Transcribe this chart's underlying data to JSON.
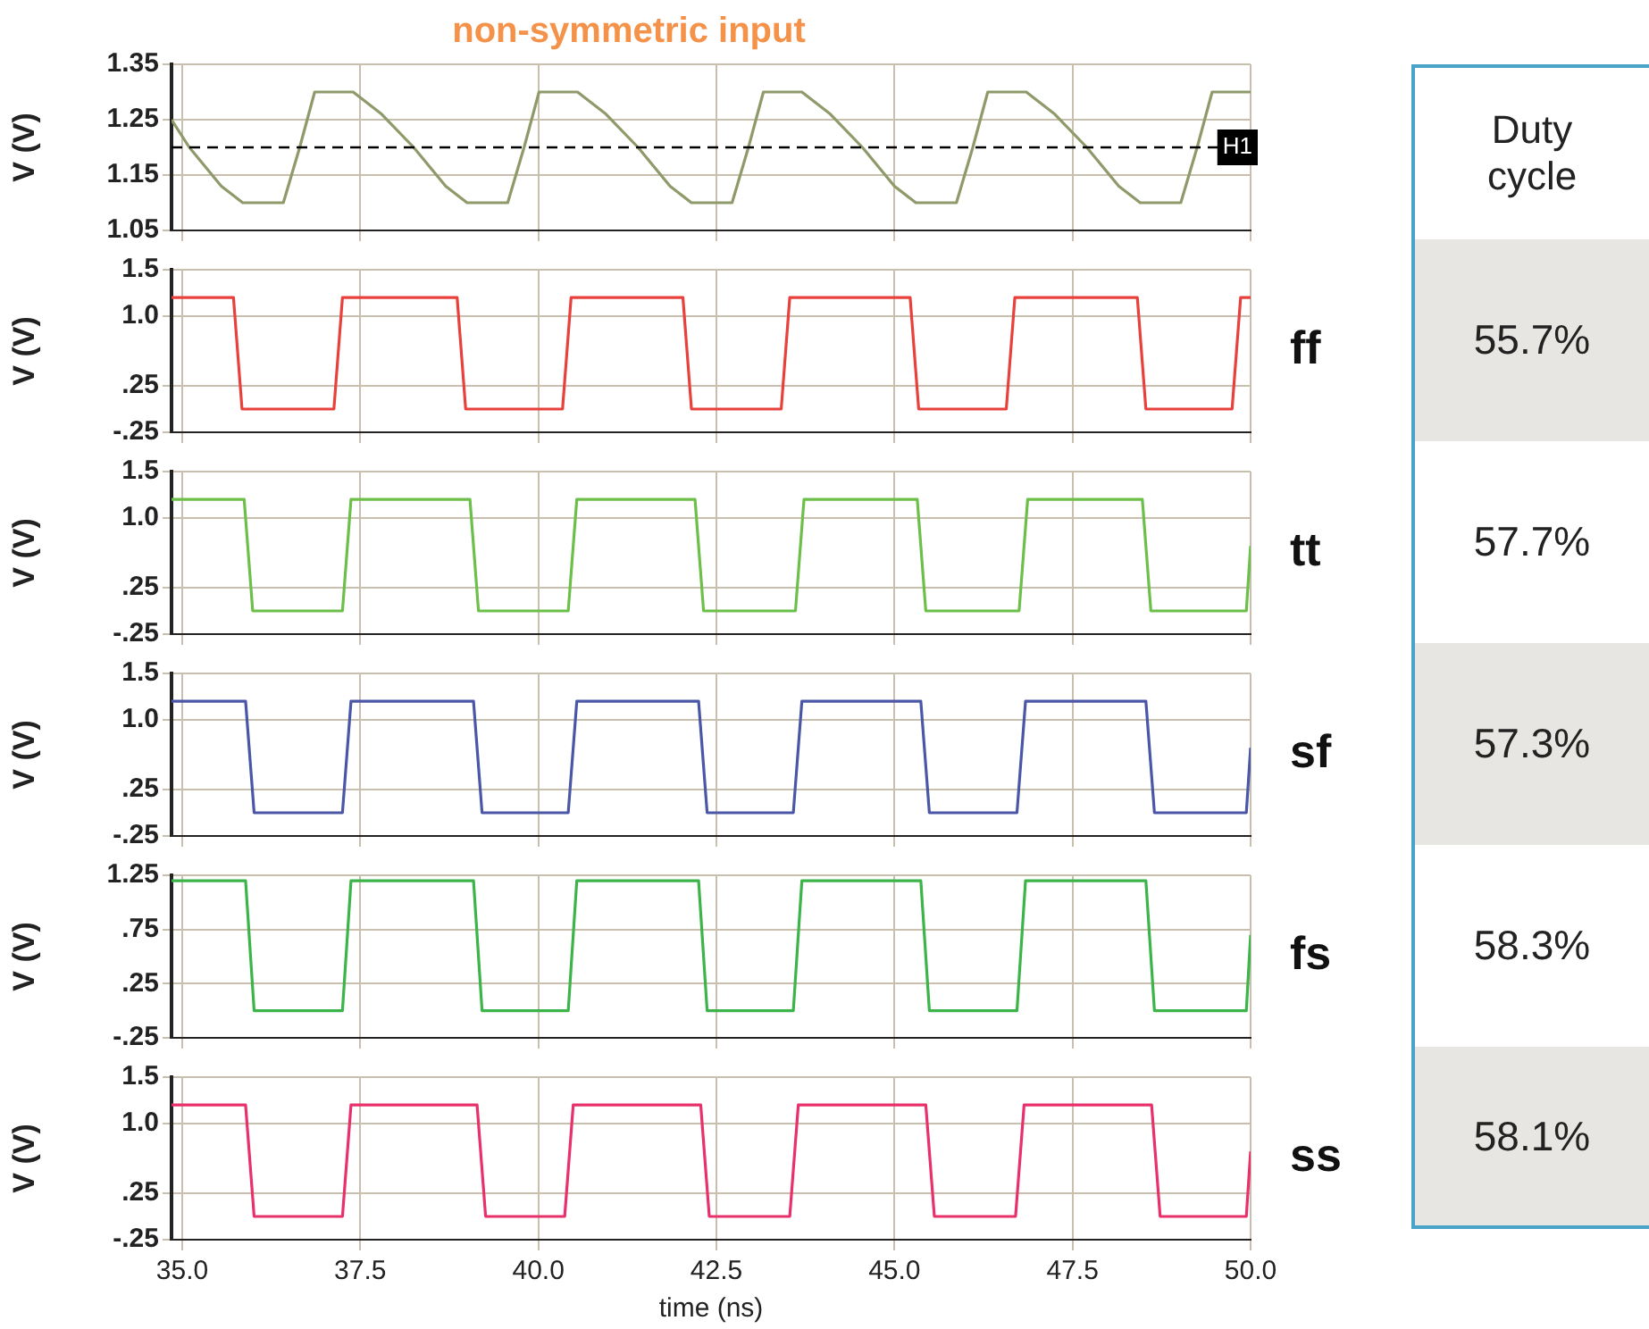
{
  "chart_data": [
    {
      "type": "line",
      "title": "non-symmetric input",
      "ylabel": "V (V)",
      "xlim": [
        34.85,
        50
      ],
      "ylim": [
        1.05,
        1.35
      ],
      "yticks": [
        1.05,
        1.15,
        1.25,
        1.35
      ],
      "grid": true,
      "tick_labels": "y",
      "marker": "none",
      "line_style": "solid",
      "ref_lines": [
        {
          "axis": "y",
          "value": 1.2,
          "label": "H1",
          "color": "#000000",
          "line_style": "dashed"
        }
      ],
      "series": [
        {
          "color": "#8f9a6a",
          "x": [
            34.85,
            35.1,
            35.55,
            35.85,
            36.42,
            36.65,
            36.86,
            37.4,
            37.8,
            38.25,
            38.7,
            39.0,
            39.57,
            39.8,
            40.01,
            40.55,
            40.95,
            41.4,
            41.85,
            42.15,
            42.72,
            42.95,
            43.16,
            43.7,
            44.1,
            44.55,
            45.0,
            45.3,
            45.87,
            46.1,
            46.31,
            46.85,
            47.25,
            47.7,
            48.15,
            48.45,
            49.02,
            49.25,
            49.46,
            50
          ],
          "values": [
            1.25,
            1.2,
            1.13,
            1.1,
            1.1,
            1.2,
            1.3,
            1.3,
            1.26,
            1.2,
            1.13,
            1.1,
            1.1,
            1.2,
            1.3,
            1.3,
            1.26,
            1.2,
            1.13,
            1.1,
            1.1,
            1.2,
            1.3,
            1.3,
            1.26,
            1.2,
            1.13,
            1.1,
            1.1,
            1.2,
            1.3,
            1.3,
            1.26,
            1.2,
            1.13,
            1.1,
            1.1,
            1.2,
            1.3,
            1.3
          ]
        }
      ]
    },
    {
      "type": "line",
      "ylabel": "V (V)",
      "xlim": [
        34.85,
        50
      ],
      "ylim": [
        -0.25,
        1.5
      ],
      "yticks": [
        {
          "value": -0.25,
          "label": "-.25"
        },
        {
          "value": 0.25,
          "label": ".25"
        },
        {
          "value": 1,
          "label": "1.0"
        },
        1.5
      ],
      "grid": true,
      "tick_labels": "y",
      "marker": "none",
      "line_style": "solid",
      "series": [
        {
          "name": "ff",
          "color": "#e8413c",
          "x": [
            34.85,
            35.72,
            35.84,
            37.13,
            37.25,
            38.86,
            38.98,
            40.34,
            40.46,
            42.03,
            42.15,
            43.41,
            43.53,
            45.22,
            45.34,
            46.57,
            46.69,
            48.41,
            48.53,
            49.74,
            49.86,
            50
          ],
          "values": [
            1.2,
            1.2,
            0,
            0,
            1.2,
            1.2,
            0,
            0,
            1.2,
            1.2,
            0,
            0,
            1.2,
            1.2,
            0,
            0,
            1.2,
            1.2,
            0,
            0,
            1.2,
            1.2
          ]
        }
      ]
    },
    {
      "type": "line",
      "ylabel": "V (V)",
      "xlim": [
        34.85,
        50
      ],
      "ylim": [
        -0.25,
        1.5
      ],
      "yticks": [
        {
          "value": -0.25,
          "label": "-.25"
        },
        {
          "value": 0.25,
          "label": ".25"
        },
        {
          "value": 1,
          "label": "1.0"
        },
        1.5
      ],
      "grid": true,
      "tick_labels": "y",
      "marker": "none",
      "line_style": "solid",
      "series": [
        {
          "name": "tt",
          "color": "#6cc04a",
          "x": [
            34.85,
            35.87,
            35.99,
            37.25,
            37.37,
            39.04,
            39.16,
            40.42,
            40.54,
            42.2,
            42.32,
            43.61,
            43.73,
            45.32,
            45.44,
            46.75,
            46.87,
            48.48,
            48.6,
            49.94,
            50
          ],
          "values": [
            1.2,
            1.2,
            0,
            0,
            1.2,
            1.2,
            0,
            0,
            1.2,
            1.2,
            0,
            0,
            1.2,
            1.2,
            0,
            0,
            1.2,
            1.2,
            0,
            0,
            0.7
          ]
        }
      ]
    },
    {
      "type": "line",
      "ylabel": "V (V)",
      "xlim": [
        34.85,
        50
      ],
      "ylim": [
        -0.25,
        1.5
      ],
      "yticks": [
        {
          "value": -0.25,
          "label": "-.25"
        },
        {
          "value": 0.25,
          "label": ".25"
        },
        {
          "value": 1,
          "label": "1.0"
        },
        1.5
      ],
      "grid": true,
      "tick_labels": "y",
      "marker": "none",
      "line_style": "solid",
      "series": [
        {
          "name": "sf",
          "color": "#4a56a6",
          "x": [
            34.85,
            35.89,
            36.01,
            37.25,
            37.37,
            39.09,
            39.21,
            40.42,
            40.54,
            42.25,
            42.37,
            43.58,
            43.7,
            45.37,
            45.49,
            46.72,
            46.84,
            48.53,
            48.65,
            49.94,
            50
          ],
          "values": [
            1.2,
            1.2,
            0,
            0,
            1.2,
            1.2,
            0,
            0,
            1.2,
            1.2,
            0,
            0,
            1.2,
            1.2,
            0,
            0,
            1.2,
            1.2,
            0,
            0,
            0.7
          ]
        }
      ]
    },
    {
      "type": "line",
      "ylabel": "V (V)",
      "xlim": [
        34.85,
        50
      ],
      "ylim": [
        -0.25,
        1.25
      ],
      "yticks": [
        {
          "value": -0.25,
          "label": "-.25"
        },
        {
          "value": 0.25,
          "label": ".25"
        },
        {
          "value": 0.75,
          "label": ".75"
        },
        1.25
      ],
      "grid": true,
      "tick_labels": "y",
      "marker": "none",
      "line_style": "solid",
      "series": [
        {
          "name": "fs",
          "color": "#3cb44a",
          "x": [
            34.85,
            35.89,
            36.01,
            37.25,
            37.37,
            39.09,
            39.21,
            40.42,
            40.54,
            42.25,
            42.37,
            43.58,
            43.7,
            45.37,
            45.49,
            46.72,
            46.84,
            48.53,
            48.65,
            49.94,
            50
          ],
          "values": [
            1.2,
            1.2,
            0,
            0,
            1.2,
            1.2,
            0,
            0,
            1.2,
            1.2,
            0,
            0,
            1.2,
            1.2,
            0,
            0,
            1.2,
            1.2,
            0,
            0,
            0.7
          ]
        }
      ]
    },
    {
      "type": "line",
      "ylabel": "V (V)",
      "xlabel": "time (ns)",
      "xlim": [
        34.85,
        50
      ],
      "xticks": [
        {
          "value": 35,
          "label": "35.0"
        },
        {
          "value": 37.5,
          "label": "37.5"
        },
        {
          "value": 40,
          "label": "40.0"
        },
        {
          "value": 42.5,
          "label": "42.5"
        },
        {
          "value": 45,
          "label": "45.0"
        },
        {
          "value": 47.5,
          "label": "47.5"
        },
        {
          "value": 50,
          "label": "50.0"
        }
      ],
      "ylim": [
        -0.25,
        1.5
      ],
      "yticks": [
        {
          "value": -0.25,
          "label": "-.25"
        },
        {
          "value": 0.25,
          "label": ".25"
        },
        {
          "value": 1,
          "label": "1.0"
        },
        1.5
      ],
      "grid": true,
      "marker": "none",
      "line_style": "solid",
      "series": [
        {
          "name": "ss",
          "color": "#e8306a",
          "x": [
            34.85,
            35.89,
            36.01,
            37.25,
            37.37,
            39.14,
            39.26,
            40.37,
            40.49,
            42.28,
            42.4,
            43.53,
            43.65,
            45.44,
            45.56,
            46.7,
            46.82,
            48.61,
            48.73,
            49.94,
            50
          ],
          "values": [
            1.2,
            1.2,
            0,
            0,
            1.2,
            1.2,
            0,
            0,
            1.2,
            1.2,
            0,
            0,
            1.2,
            1.2,
            0,
            0,
            1.2,
            1.2,
            0,
            0,
            0.7
          ]
        }
      ]
    },
    {
      "type": "other",
      "title": "Duty cycle",
      "annotations": [
        "55.7%",
        "57.7%",
        "57.3%",
        "58.3%",
        "58.1%"
      ]
    }
  ]
}
